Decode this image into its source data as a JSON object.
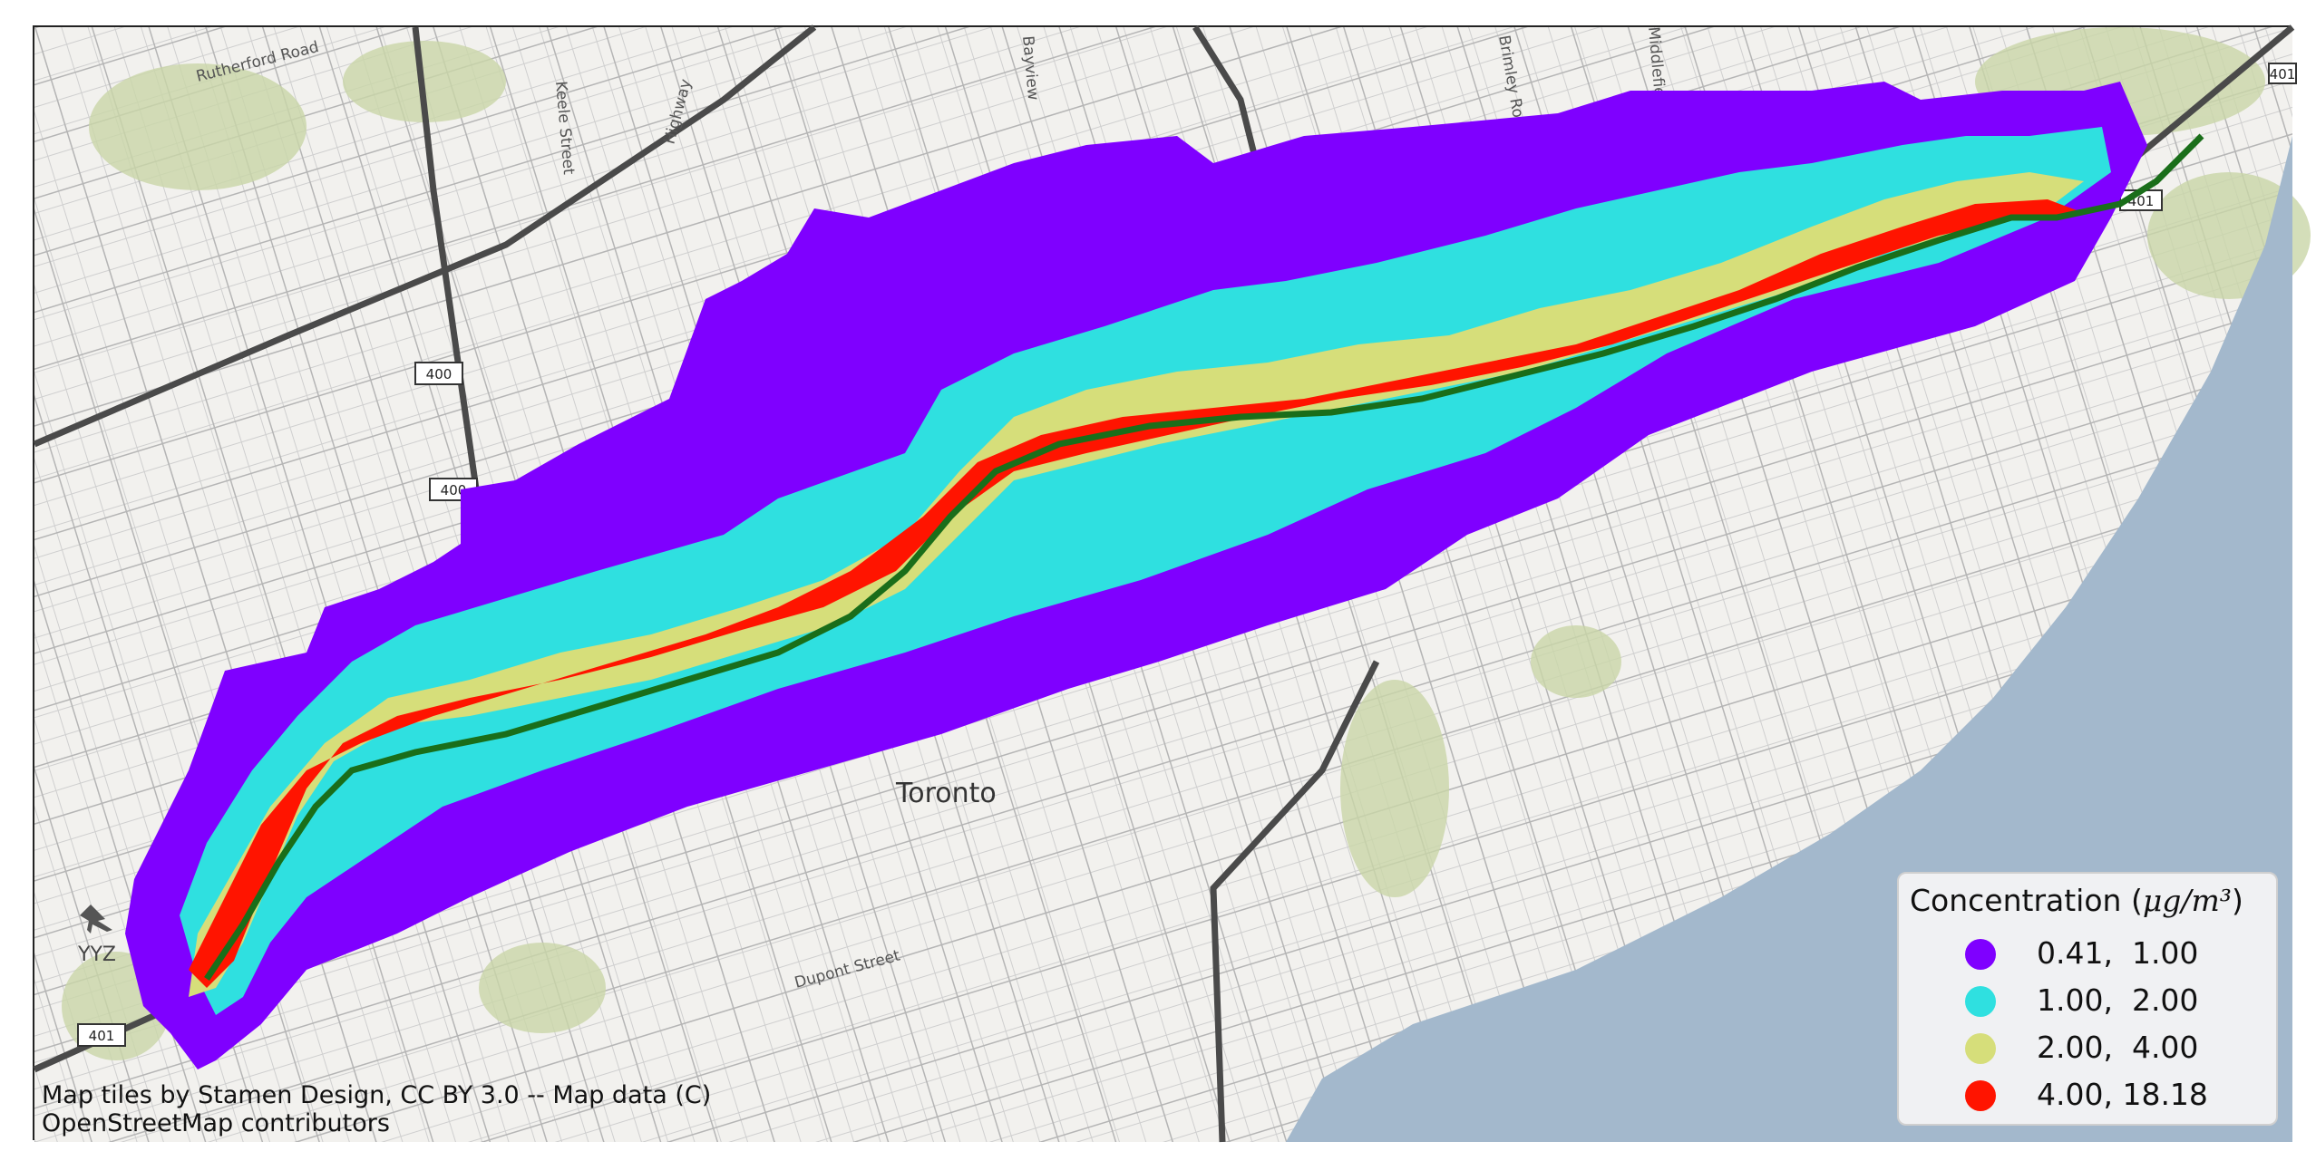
{
  "map": {
    "city_label": "Toronto",
    "airport_label": "YYZ",
    "road_labels": {
      "rutherford": "Rutherford Road",
      "keele": "Keele Street",
      "highway": "Highway",
      "bayview": "Bayview",
      "brimley": "Brimley Road",
      "middlefield": "Middlefield",
      "dupont": "Dupont Street"
    },
    "shields": [
      "400",
      "400",
      "401",
      "401",
      "401"
    ],
    "colors": {
      "water": "#a3b8cc",
      "land": "#f2f1ee",
      "park": "#c9d6a8",
      "highway": "#4a4a4a",
      "route": "#1a6e1a"
    }
  },
  "legend": {
    "title_prefix": "Concentration (",
    "title_unit": "μg/m³",
    "title_suffix": ")",
    "items": [
      {
        "label": "0.41,  1.00",
        "color": "#7f00ff"
      },
      {
        "label": "1.00,  2.00",
        "color": "#2fe0e0"
      },
      {
        "label": "2.00,  4.00",
        "color": "#d6de7a"
      },
      {
        "label": "4.00, 18.18",
        "color": "#ff1400"
      }
    ]
  },
  "attribution": {
    "line1": "Map tiles by Stamen Design, CC BY 3.0 -- Map data (C)",
    "line2": "OpenStreetMap contributors"
  }
}
